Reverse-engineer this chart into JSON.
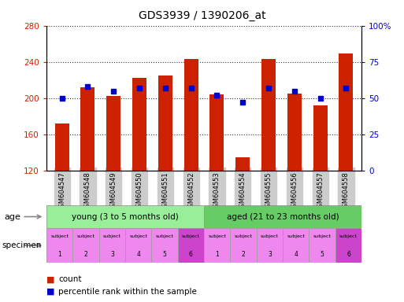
{
  "title": "GDS3939 / 1390206_at",
  "samples": [
    "GSM604547",
    "GSM604548",
    "GSM604549",
    "GSM604550",
    "GSM604551",
    "GSM604552",
    "GSM604553",
    "GSM604554",
    "GSM604555",
    "GSM604556",
    "GSM604557",
    "GSM604558"
  ],
  "counts": [
    172,
    212,
    202,
    222,
    225,
    243,
    204,
    135,
    243,
    205,
    192,
    249
  ],
  "percentiles": [
    50,
    58,
    55,
    57,
    57,
    57,
    52,
    47,
    57,
    55,
    50,
    57
  ],
  "ylim_left": [
    120,
    280
  ],
  "ylim_right": [
    0,
    100
  ],
  "yticks_left": [
    120,
    160,
    200,
    240,
    280
  ],
  "yticks_right": [
    0,
    25,
    50,
    75,
    100
  ],
  "yticklabels_right": [
    "0",
    "25",
    "50",
    "75",
    "100%"
  ],
  "bar_color": "#cc2200",
  "dot_color": "#0000cc",
  "grid_color": "#000000",
  "age_groups": [
    {
      "label": "young (3 to 5 months old)",
      "start": 0,
      "end": 6,
      "color": "#99ee99"
    },
    {
      "label": "aged (21 to 23 months old)",
      "start": 6,
      "end": 12,
      "color": "#66cc66"
    }
  ],
  "specimen_colors_light": "#ee88ee",
  "specimen_colors_dark": "#cc44cc",
  "specimen_number_dark": [
    5,
    11
  ],
  "xlabel_color_left": "#cc2200",
  "xlabel_color_right": "#0000cc",
  "tick_bg_color": "#cccccc",
  "bg_color": "#ffffff"
}
